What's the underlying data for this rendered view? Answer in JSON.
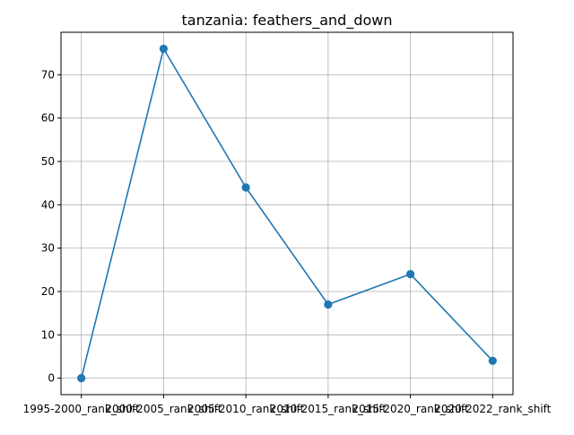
{
  "chart_data": {
    "type": "line",
    "title": "tanzania: feathers_and_down",
    "xlabel": "",
    "ylabel": "",
    "categories": [
      "1995-2000_rank_shift",
      "2000-2005_rank_shift",
      "2005-2010_rank_shift",
      "2010-2015_rank_shift",
      "2015-2020_rank_shift",
      "2020-2022_rank_shift"
    ],
    "series": [
      {
        "values": [
          0,
          76,
          44,
          17,
          24,
          4
        ]
      }
    ],
    "ylim": [
      -3.8,
      79.8
    ],
    "yticks": [
      0,
      10,
      20,
      30,
      40,
      50,
      60,
      70
    ],
    "grid": true,
    "legend": "none",
    "colors": {
      "line": "#1f77b4",
      "marker": "#1f77b4",
      "grid": "#b0b0b0"
    }
  }
}
